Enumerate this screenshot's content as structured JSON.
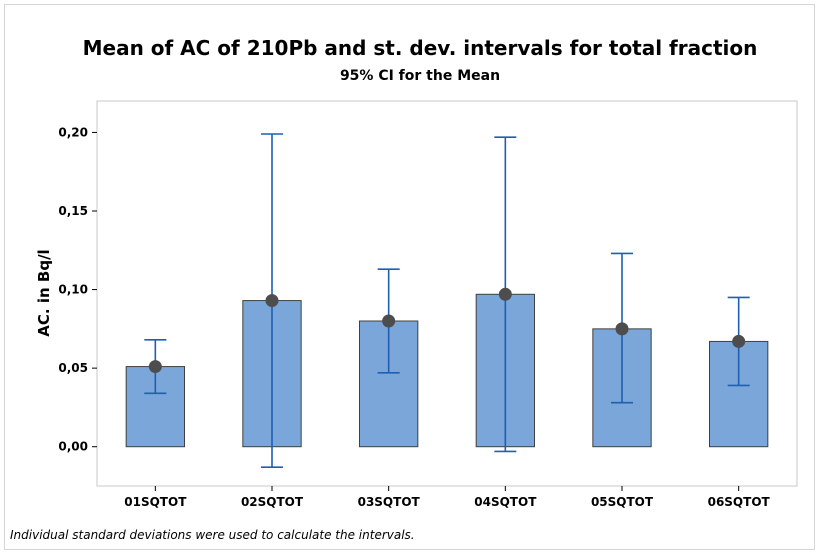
{
  "chart_data": {
    "type": "bar",
    "title": "Mean of AC of 210Pb and st. dev. intervals for total fraction",
    "subtitle": "95% CI for the Mean",
    "ylabel": "AC. in Bq/l",
    "xlabel": "",
    "categories": [
      "01SQTOT",
      "02SQTOT",
      "03SQTOT",
      "04SQTOT",
      "05SQTOT",
      "06SQTOT"
    ],
    "series": [
      {
        "values": [
          0.051,
          0.093,
          0.08,
          0.097,
          0.075,
          0.067
        ],
        "ci_lower": [
          0.034,
          -0.013,
          0.047,
          -0.003,
          0.028,
          0.039
        ],
        "ci_upper": [
          0.068,
          0.199,
          0.113,
          0.197,
          0.123,
          0.095
        ]
      }
    ],
    "ylim": [
      -0.025,
      0.22
    ],
    "yticks": [
      "0,00",
      "0,05",
      "0,10",
      "0,15",
      "0,20"
    ],
    "ytick_values": [
      0,
      0.05,
      0.1,
      0.15,
      0.2
    ],
    "footnote": "Individual standard deviations were used to calculate the intervals.",
    "colors": {
      "bar_fill": "#7aa6da",
      "bar_stroke": "#404040",
      "error_bar": "#1f5fb0",
      "mean_marker": "#4d4d4d",
      "plot_border": "#c8c8c8"
    },
    "grid": false,
    "legend": "none"
  }
}
